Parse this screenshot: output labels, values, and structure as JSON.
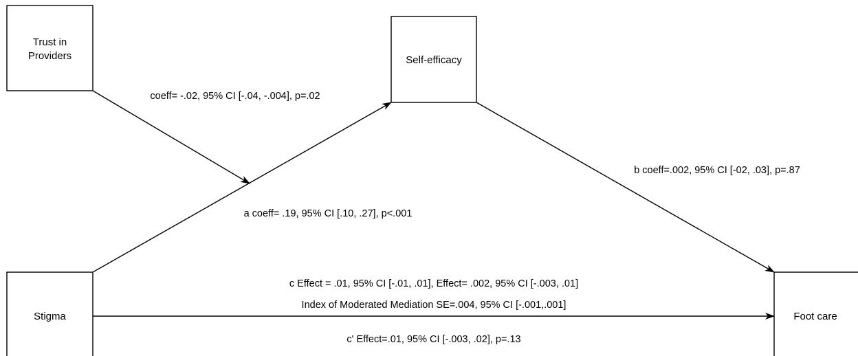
{
  "colors": {
    "line": "#000000",
    "background": "#ffffff"
  },
  "nodes": {
    "trust": {
      "line1": "Trust in",
      "line2": "Providers"
    },
    "self_efficacy": {
      "label": "Self-efficacy"
    },
    "stigma": {
      "label": "Stigma"
    },
    "foot_care": {
      "label": "Foot care"
    }
  },
  "edges": {
    "moderation": {
      "label": "coeff= -.02, 95% CI [-.04, -.004], p=.02"
    },
    "a_path": {
      "label": "a coeff= .19, 95% CI [.10, .27], p<.001"
    },
    "b_path": {
      "label": "b coeff=.002, 95% CI [-02, .03], p=.87"
    },
    "c_path": {
      "line1": "c Effect = .01, 95% CI [-.01, .01], Effect= .002, 95% CI [-.003, .01]",
      "line2": "Index of Moderated Mediation SE=.004, 95% CI [-.001,.001]"
    },
    "c_prime_path": {
      "label": "c' Effect=.01, 95% CI [-.003, .02], p=.13"
    }
  }
}
